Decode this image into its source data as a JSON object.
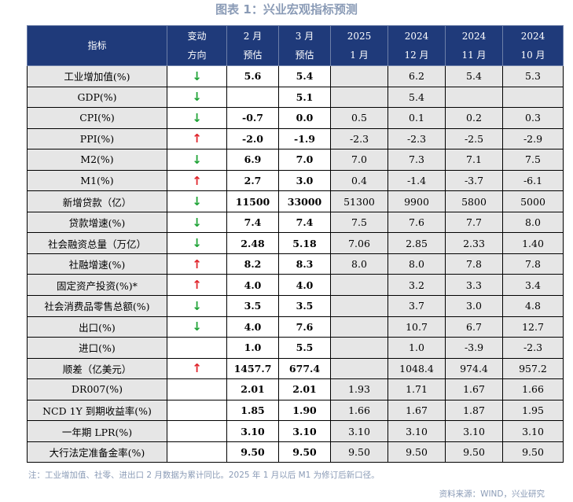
{
  "title": "图表 1：兴业宏观指标预测",
  "header": [
    {
      "l1": "指标",
      "l2": ""
    },
    {
      "l1": "变动",
      "l2": "方向"
    },
    {
      "l1": "2 月",
      "l2": "预估"
    },
    {
      "l1": "3 月",
      "l2": "预估"
    },
    {
      "l1": "2025",
      "l2": "1 月"
    },
    {
      "l1": "2024",
      "l2": "12 月"
    },
    {
      "l1": "2024",
      "l2": "11 月"
    },
    {
      "l1": "2024",
      "l2": "10 月"
    }
  ],
  "rows": [
    {
      "name": "工业增加值(%)",
      "dir": "down",
      "feb": "5.6",
      "mar": "5.4",
      "c2025_1": "",
      "c2024_12": "6.2",
      "c2024_11": "5.4",
      "c2024_10": "5.3"
    },
    {
      "name": "GDP(%)",
      "dir": "down",
      "feb": "",
      "mar": "5.1",
      "c2025_1": "",
      "c2024_12": "5.4",
      "c2024_11": "",
      "c2024_10": ""
    },
    {
      "name": "CPI(%)",
      "dir": "down",
      "feb": "-0.7",
      "mar": "0.0",
      "c2025_1": "0.5",
      "c2024_12": "0.1",
      "c2024_11": "0.2",
      "c2024_10": "0.3"
    },
    {
      "name": "PPI(%)",
      "dir": "up",
      "feb": "-2.0",
      "mar": "-1.9",
      "c2025_1": "-2.3",
      "c2024_12": "-2.3",
      "c2024_11": "-2.5",
      "c2024_10": "-2.9"
    },
    {
      "name": "M2(%)",
      "dir": "down",
      "feb": "6.9",
      "mar": "7.0",
      "c2025_1": "7.0",
      "c2024_12": "7.3",
      "c2024_11": "7.1",
      "c2024_10": "7.5"
    },
    {
      "name": "M1(%)",
      "dir": "up",
      "feb": "2.7",
      "mar": "3.0",
      "c2025_1": "0.4",
      "c2024_12": "-1.4",
      "c2024_11": "-3.7",
      "c2024_10": "-6.1"
    },
    {
      "name": "新增贷款（亿）",
      "dir": "down",
      "feb": "11500",
      "mar": "33000",
      "c2025_1": "51300",
      "c2024_12": "9900",
      "c2024_11": "5800",
      "c2024_10": "5000"
    },
    {
      "name": "贷款增速(%)",
      "dir": "down",
      "feb": "7.4",
      "mar": "7.4",
      "c2025_1": "7.5",
      "c2024_12": "7.6",
      "c2024_11": "7.7",
      "c2024_10": "8.0"
    },
    {
      "name": "社会融资总量（万亿）",
      "dir": "down",
      "feb": "2.48",
      "mar": "5.18",
      "c2025_1": "7.06",
      "c2024_12": "2.85",
      "c2024_11": "2.33",
      "c2024_10": "1.40"
    },
    {
      "name": "社融增速(%)",
      "dir": "up",
      "feb": "8.2",
      "mar": "8.3",
      "c2025_1": "8.0",
      "c2024_12": "8.0",
      "c2024_11": "7.8",
      "c2024_10": "7.8"
    },
    {
      "name": "固定资产投资(%)*",
      "dir": "up",
      "feb": "4.0",
      "mar": "4.0",
      "c2025_1": "",
      "c2024_12": "3.2",
      "c2024_11": "3.3",
      "c2024_10": "3.4"
    },
    {
      "name": "社会消费品零售总额(%)",
      "dir": "down",
      "feb": "3.5",
      "mar": "3.5",
      "c2025_1": "",
      "c2024_12": "3.7",
      "c2024_11": "3.0",
      "c2024_10": "4.8"
    },
    {
      "name": "出口(%)",
      "dir": "down",
      "feb": "4.0",
      "mar": "7.6",
      "c2025_1": "",
      "c2024_12": "10.7",
      "c2024_11": "6.7",
      "c2024_10": "12.7"
    },
    {
      "name": "进口(%)",
      "dir": "",
      "feb": "1.0",
      "mar": "5.5",
      "c2025_1": "",
      "c2024_12": "1.0",
      "c2024_11": "-3.9",
      "c2024_10": "-2.3"
    },
    {
      "name": "顺差（亿美元）",
      "dir": "up",
      "feb": "1457.7",
      "mar": "677.4",
      "c2025_1": "",
      "c2024_12": "1048.4",
      "c2024_11": "974.4",
      "c2024_10": "957.2"
    },
    {
      "name": "DR007(%)",
      "dir": "",
      "feb": "2.01",
      "mar": "2.01",
      "c2025_1": "1.93",
      "c2024_12": "1.71",
      "c2024_11": "1.67",
      "c2024_10": "1.66"
    },
    {
      "name": "NCD 1Y 到期收益率(%)",
      "dir": "",
      "feb": "1.85",
      "mar": "1.90",
      "c2025_1": "1.66",
      "c2024_12": "1.67",
      "c2024_11": "1.87",
      "c2024_10": "1.95"
    },
    {
      "name": "一年期 LPR(%)",
      "dir": "",
      "feb": "3.10",
      "mar": "3.10",
      "c2025_1": "3.10",
      "c2024_12": "3.10",
      "c2024_11": "3.10",
      "c2024_10": "3.10"
    },
    {
      "name": "大行法定准备金率(%)",
      "dir": "",
      "feb": "9.50",
      "mar": "9.50",
      "c2025_1": "9.50",
      "c2024_12": "9.50",
      "c2024_11": "9.50",
      "c2024_10": "9.50"
    }
  ],
  "arrows": {
    "up": "↑",
    "down": "↓"
  },
  "colors": {
    "header_bg": "#1f3a7a",
    "up": "#e0242b",
    "down": "#1fa336",
    "shade": "#e6e6e6",
    "caption": "#8a9bb6"
  },
  "note": "注：工业增加值、社零、进出口 2 月数据为累计同比。2025 年 1 月以后 M1 为修订后新口径。",
  "source": "资料来源：WIND，兴业研究"
}
